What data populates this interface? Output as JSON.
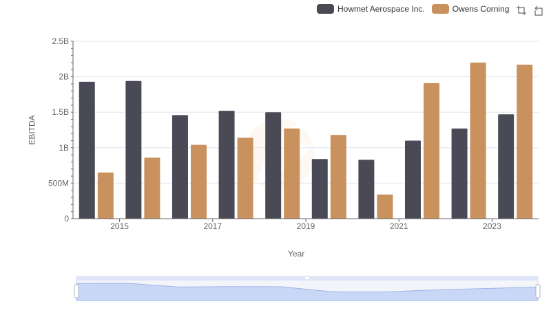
{
  "legend": {
    "items": [
      {
        "name": "Howmet Aerospace Inc.",
        "color": "#4a4a57"
      },
      {
        "name": "Owens Corning",
        "color": "#c8915d"
      }
    ]
  },
  "toolbox": {
    "icons": [
      "zoom-icon",
      "restore-icon"
    ]
  },
  "chart_data": {
    "type": "bar",
    "x": [
      2014,
      2015,
      2016,
      2017,
      2018,
      2019,
      2020,
      2021,
      2022,
      2023
    ],
    "x_tick_labels": [
      "2015",
      "2017",
      "2019",
      "2021",
      "2023"
    ],
    "series": [
      {
        "name": "Howmet Aerospace Inc.",
        "color": "#4a4a57",
        "values": [
          1930000000,
          1940000000,
          1460000000,
          1520000000,
          1500000000,
          840000000,
          830000000,
          1100000000,
          1270000000,
          1470000000
        ]
      },
      {
        "name": "Owens Corning",
        "color": "#c8915d",
        "values": [
          650000000,
          860000000,
          1040000000,
          1140000000,
          1270000000,
          1180000000,
          340000000,
          1910000000,
          2200000000,
          2170000000
        ]
      }
    ],
    "xlabel": "Year",
    "ylabel": "EBITDA",
    "ylim": [
      0,
      2500000000
    ],
    "y_ticks": [
      {
        "value": 0,
        "label": "0"
      },
      {
        "value": 500000000,
        "label": "500M"
      },
      {
        "value": 1000000000,
        "label": "1B"
      },
      {
        "value": 1500000000,
        "label": "1.5B"
      },
      {
        "value": 2000000000,
        "label": "2B"
      },
      {
        "value": 2500000000,
        "label": "2.5B"
      }
    ],
    "grid": true,
    "legend_position": "top-right",
    "data_zoom_slider": true
  }
}
